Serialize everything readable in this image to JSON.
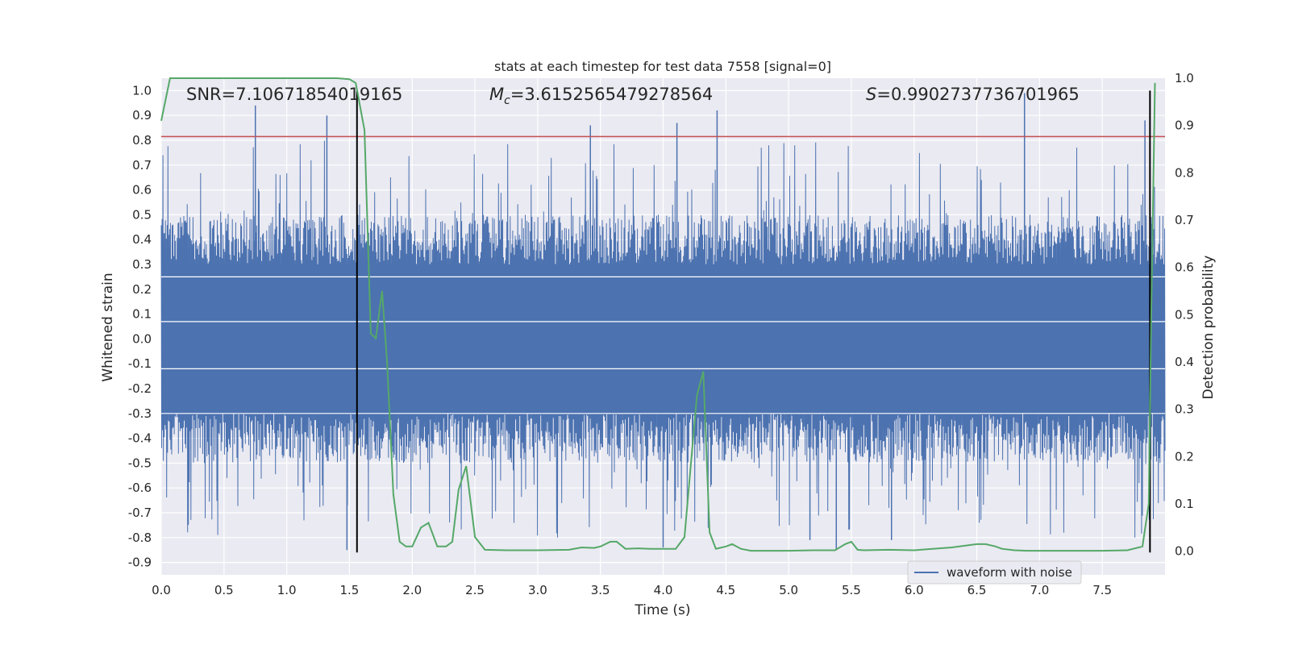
{
  "chart_data": {
    "type": "line",
    "title": "stats at each timestep for test data 7558 [signal=0]",
    "xlabel": "Time (s)",
    "ylabel": "Whitened strain",
    "ylabel_right": "Detection probability",
    "xlim": [
      0.0,
      8.0
    ],
    "ylim": [
      -0.95,
      1.05
    ],
    "ylim_right": [
      -0.05,
      1.0
    ],
    "xticks": [
      "0.0",
      "0.5",
      "1.0",
      "1.5",
      "2.0",
      "2.5",
      "3.0",
      "3.5",
      "4.0",
      "4.5",
      "5.0",
      "5.5",
      "6.0",
      "6.5",
      "7.0",
      "7.5"
    ],
    "yticks": [
      "-0.9",
      "-0.8",
      "-0.7",
      "-0.6",
      "-0.5",
      "-0.4",
      "-0.3",
      "-0.2",
      "-0.1",
      "0.0",
      "0.1",
      "0.2",
      "0.3",
      "0.4",
      "0.5",
      "0.6",
      "0.7",
      "0.8",
      "0.9",
      "1.0"
    ],
    "yticks_right": [
      "0.0",
      "0.1",
      "0.2",
      "0.3",
      "0.4",
      "0.5",
      "0.6",
      "0.7",
      "0.8",
      "0.9",
      "1.0"
    ],
    "grid": true,
    "legend": {
      "position": "lower-right",
      "entries": [
        "waveform with noise"
      ]
    },
    "annotations": {
      "snr": "SNR=7.10671854019165",
      "mc_symbol": "M",
      "mc_sub": "c",
      "mc_value": "=3.6152565479278564",
      "s_symbol": "S",
      "s_value": "=0.9902737736701965"
    },
    "series": [
      {
        "name": "waveform with noise",
        "axis": "left",
        "color": "#4c72b0",
        "envelope_typical": [
          -0.5,
          0.5
        ],
        "envelope_extreme": [
          -0.85,
          1.0
        ],
        "notable_peaks": [
          {
            "x": 0.75,
            "y": 0.94
          },
          {
            "x": 1.32,
            "y": 0.9
          },
          {
            "x": 3.42,
            "y": 0.86
          },
          {
            "x": 4.11,
            "y": 0.87
          },
          {
            "x": 4.43,
            "y": 0.92
          },
          {
            "x": 6.88,
            "y": 0.99
          },
          {
            "x": 7.84,
            "y": 0.88
          },
          {
            "x": 4.0,
            "y": -0.84
          },
          {
            "x": 1.48,
            "y": -0.85
          },
          {
            "x": 5.38,
            "y": -0.85
          },
          {
            "x": 5.17,
            "y": -0.81
          },
          {
            "x": 5.82,
            "y": -0.81
          }
        ]
      },
      {
        "name": "",
        "axis": "right",
        "color": "#55a868",
        "x": [
          0.0,
          0.07,
          0.2,
          0.5,
          1.0,
          1.4,
          1.5,
          1.55,
          1.62,
          1.67,
          1.71,
          1.76,
          1.8,
          1.85,
          1.9,
          1.95,
          2.0,
          2.07,
          2.13,
          2.2,
          2.27,
          2.32,
          2.37,
          2.43,
          2.5,
          2.58,
          2.75,
          3.0,
          3.25,
          3.35,
          3.45,
          3.5,
          3.58,
          3.63,
          3.7,
          3.8,
          3.9,
          4.0,
          4.1,
          4.17,
          4.22,
          4.27,
          4.32,
          4.37,
          4.42,
          4.5,
          4.55,
          4.62,
          4.7,
          4.8,
          5.0,
          5.2,
          5.37,
          5.45,
          5.5,
          5.55,
          5.6,
          5.8,
          6.0,
          6.3,
          6.5,
          6.57,
          6.65,
          6.7,
          6.8,
          6.9,
          7.0,
          7.2,
          7.5,
          7.7,
          7.82,
          7.87,
          7.89,
          7.92
        ],
        "values": [
          0.91,
          1.0,
          1.0,
          1.0,
          1.0,
          1.0,
          0.998,
          0.99,
          0.89,
          0.46,
          0.45,
          0.55,
          0.4,
          0.12,
          0.02,
          0.01,
          0.01,
          0.05,
          0.06,
          0.01,
          0.01,
          0.02,
          0.13,
          0.18,
          0.03,
          0.003,
          0.002,
          0.002,
          0.003,
          0.008,
          0.007,
          0.01,
          0.02,
          0.02,
          0.005,
          0.006,
          0.005,
          0.005,
          0.005,
          0.03,
          0.18,
          0.33,
          0.38,
          0.04,
          0.005,
          0.01,
          0.015,
          0.005,
          0.001,
          0.001,
          0.001,
          0.002,
          0.002,
          0.015,
          0.02,
          0.003,
          0.002,
          0.003,
          0.002,
          0.008,
          0.015,
          0.015,
          0.01,
          0.005,
          0.002,
          0.001,
          0.001,
          0.001,
          0.001,
          0.002,
          0.01,
          0.1,
          0.5,
          0.99
        ]
      },
      {
        "name": "",
        "axis": "left",
        "type": "hline",
        "color": "#c44e52",
        "y": 0.815
      },
      {
        "name": "",
        "type": "vline",
        "color": "#000000",
        "x": [
          1.56,
          7.88
        ],
        "y_range": [
          -0.86,
          1.0
        ]
      }
    ]
  }
}
